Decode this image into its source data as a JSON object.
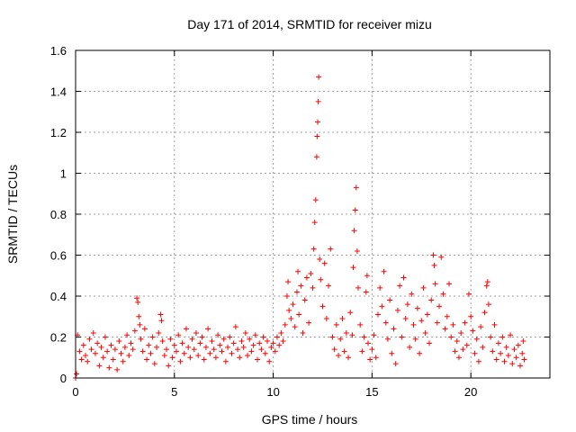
{
  "chart_data": {
    "type": "scatter",
    "title": "Day 171 of 2014, SRMTID for receiver mizu",
    "xlabel": "GPS time / hours",
    "ylabel": "SRMTID / TECUs",
    "xlim": [
      0,
      24
    ],
    "ylim": [
      0,
      1.6
    ],
    "xticks": [
      0,
      5,
      10,
      15,
      20
    ],
    "yticks": [
      0,
      0.2,
      0.4,
      0.6,
      0.8,
      1,
      1.2,
      1.4,
      1.6
    ],
    "xtick_labels": [
      "0",
      "5",
      "10",
      "15",
      "20"
    ],
    "ytick_labels": [
      "0",
      "0.2",
      "0.4",
      "0.6",
      "0.8",
      "1",
      "1.2",
      "1.4",
      "1.6"
    ],
    "grid": true,
    "marker": "+",
    "colors": {
      "points": "#ff0000",
      "grid": "#a0a0a0",
      "axis": "#000000"
    },
    "series": [
      {
        "name": "SRMTID",
        "points": [
          [
            0.0,
            0.0
          ],
          [
            0.05,
            0.02
          ],
          [
            0.1,
            0.21
          ],
          [
            0.2,
            0.13
          ],
          [
            0.3,
            0.09
          ],
          [
            0.4,
            0.16
          ],
          [
            0.5,
            0.11
          ],
          [
            0.6,
            0.08
          ],
          [
            0.7,
            0.19
          ],
          [
            0.8,
            0.14
          ],
          [
            0.9,
            0.22
          ],
          [
            1.0,
            0.12
          ],
          [
            1.1,
            0.17
          ],
          [
            1.2,
            0.06
          ],
          [
            1.3,
            0.15
          ],
          [
            1.4,
            0.1
          ],
          [
            1.5,
            0.2
          ],
          [
            1.6,
            0.13
          ],
          [
            1.7,
            0.05
          ],
          [
            1.8,
            0.16
          ],
          [
            1.9,
            0.09
          ],
          [
            2.0,
            0.14
          ],
          [
            2.1,
            0.04
          ],
          [
            2.2,
            0.18
          ],
          [
            2.3,
            0.12
          ],
          [
            2.4,
            0.08
          ],
          [
            2.5,
            0.15
          ],
          [
            2.6,
            0.21
          ],
          [
            2.7,
            0.11
          ],
          [
            2.8,
            0.17
          ],
          [
            2.9,
            0.14
          ],
          [
            3.0,
            0.23
          ],
          [
            3.1,
            0.39
          ],
          [
            3.15,
            0.37
          ],
          [
            3.2,
            0.3
          ],
          [
            3.25,
            0.26
          ],
          [
            3.3,
            0.19
          ],
          [
            3.4,
            0.13
          ],
          [
            3.5,
            0.24
          ],
          [
            3.6,
            0.09
          ],
          [
            3.7,
            0.16
          ],
          [
            3.8,
            0.12
          ],
          [
            3.9,
            0.2
          ],
          [
            4.0,
            0.07
          ],
          [
            4.1,
            0.15
          ],
          [
            4.2,
            0.22
          ],
          [
            4.3,
            0.31
          ],
          [
            4.35,
            0.28
          ],
          [
            4.4,
            0.18
          ],
          [
            4.5,
            0.11
          ],
          [
            4.6,
            0.14
          ],
          [
            4.7,
            0.06
          ],
          [
            4.8,
            0.19
          ],
          [
            4.9,
            0.1
          ],
          [
            5.0,
            0.16
          ],
          [
            5.1,
            0.13
          ],
          [
            5.2,
            0.21
          ],
          [
            5.3,
            0.08
          ],
          [
            5.4,
            0.17
          ],
          [
            5.5,
            0.12
          ],
          [
            5.6,
            0.24
          ],
          [
            5.7,
            0.15
          ],
          [
            5.8,
            0.1
          ],
          [
            5.9,
            0.19
          ],
          [
            6.0,
            0.14
          ],
          [
            6.1,
            0.22
          ],
          [
            6.2,
            0.11
          ],
          [
            6.3,
            0.17
          ],
          [
            6.4,
            0.2
          ],
          [
            6.5,
            0.09
          ],
          [
            6.6,
            0.15
          ],
          [
            6.7,
            0.24
          ],
          [
            6.8,
            0.12
          ],
          [
            6.9,
            0.18
          ],
          [
            7.0,
            0.14
          ],
          [
            7.1,
            0.1
          ],
          [
            7.2,
            0.21
          ],
          [
            7.3,
            0.16
          ],
          [
            7.4,
            0.13
          ],
          [
            7.5,
            0.19
          ],
          [
            7.6,
            0.08
          ],
          [
            7.7,
            0.15
          ],
          [
            7.8,
            0.2
          ],
          [
            7.9,
            0.12
          ],
          [
            8.0,
            0.17
          ],
          [
            8.1,
            0.25
          ],
          [
            8.2,
            0.14
          ],
          [
            8.3,
            0.1
          ],
          [
            8.4,
            0.18
          ],
          [
            8.5,
            0.15
          ],
          [
            8.6,
            0.22
          ],
          [
            8.7,
            0.11
          ],
          [
            8.8,
            0.19
          ],
          [
            8.9,
            0.13
          ],
          [
            9.0,
            0.16
          ],
          [
            9.1,
            0.21
          ],
          [
            9.2,
            0.09
          ],
          [
            9.3,
            0.17
          ],
          [
            9.4,
            0.14
          ],
          [
            9.5,
            0.2
          ],
          [
            9.6,
            0.12
          ],
          [
            9.7,
            0.18
          ],
          [
            9.8,
            0.08
          ],
          [
            9.9,
            0.15
          ],
          [
            10.0,
            0.17
          ],
          [
            10.1,
            0.13
          ],
          [
            10.2,
            0.2
          ],
          [
            10.3,
            0.16
          ],
          [
            10.4,
            0.22
          ],
          [
            10.5,
            0.18
          ],
          [
            10.6,
            0.26
          ],
          [
            10.7,
            0.4
          ],
          [
            10.75,
            0.47
          ],
          [
            10.8,
            0.33
          ],
          [
            10.9,
            0.29
          ],
          [
            11.0,
            0.36
          ],
          [
            11.1,
            0.25
          ],
          [
            11.2,
            0.42
          ],
          [
            11.25,
            0.52
          ],
          [
            11.3,
            0.31
          ],
          [
            11.4,
            0.45
          ],
          [
            11.5,
            0.22
          ],
          [
            11.6,
            0.38
          ],
          [
            11.7,
            0.49
          ],
          [
            11.8,
            0.27
          ],
          [
            11.9,
            0.51
          ],
          [
            12.0,
            0.44
          ],
          [
            12.05,
            0.63
          ],
          [
            12.1,
            0.76
          ],
          [
            12.15,
            0.87
          ],
          [
            12.2,
            1.08
          ],
          [
            12.22,
            1.18
          ],
          [
            12.25,
            1.25
          ],
          [
            12.28,
            1.35
          ],
          [
            12.3,
            1.47
          ],
          [
            12.35,
            0.58
          ],
          [
            12.4,
            0.48
          ],
          [
            12.5,
            0.35
          ],
          [
            12.6,
            0.56
          ],
          [
            12.7,
            0.29
          ],
          [
            12.8,
            0.45
          ],
          [
            12.9,
            0.63
          ],
          [
            13.0,
            0.2
          ],
          [
            13.1,
            0.14
          ],
          [
            13.2,
            0.26
          ],
          [
            13.3,
            0.11
          ],
          [
            13.4,
            0.19
          ],
          [
            13.5,
            0.29
          ],
          [
            13.6,
            0.13
          ],
          [
            13.7,
            0.22
          ],
          [
            13.8,
            0.1
          ],
          [
            13.9,
            0.32
          ],
          [
            14.0,
            0.21
          ],
          [
            14.05,
            0.54
          ],
          [
            14.1,
            0.72
          ],
          [
            14.15,
            0.82
          ],
          [
            14.2,
            0.93
          ],
          [
            14.25,
            0.62
          ],
          [
            14.3,
            0.44
          ],
          [
            14.4,
            0.26
          ],
          [
            14.5,
            0.13
          ],
          [
            14.6,
            0.2
          ],
          [
            14.7,
            0.42
          ],
          [
            14.75,
            0.5
          ],
          [
            14.8,
            0.17
          ],
          [
            14.9,
            0.09
          ],
          [
            15.0,
            0.14
          ],
          [
            15.1,
            0.21
          ],
          [
            15.2,
            0.1
          ],
          [
            15.3,
            0.31
          ],
          [
            15.4,
            0.44
          ],
          [
            15.5,
            0.35
          ],
          [
            15.6,
            0.52
          ],
          [
            15.7,
            0.27
          ],
          [
            15.8,
            0.19
          ],
          [
            15.9,
            0.38
          ],
          [
            16.0,
            0.12
          ],
          [
            16.1,
            0.24
          ],
          [
            16.2,
            0.07
          ],
          [
            16.3,
            0.33
          ],
          [
            16.4,
            0.45
          ],
          [
            16.5,
            0.2
          ],
          [
            16.6,
            0.49
          ],
          [
            16.7,
            0.29
          ],
          [
            16.8,
            0.36
          ],
          [
            16.9,
            0.15
          ],
          [
            17.0,
            0.41
          ],
          [
            17.1,
            0.26
          ],
          [
            17.2,
            0.19
          ],
          [
            17.3,
            0.34
          ],
          [
            17.4,
            0.12
          ],
          [
            17.5,
            0.28
          ],
          [
            17.6,
            0.44
          ],
          [
            17.7,
            0.22
          ],
          [
            17.8,
            0.31
          ],
          [
            17.9,
            0.17
          ],
          [
            18.0,
            0.38
          ],
          [
            18.1,
            0.6
          ],
          [
            18.15,
            0.55
          ],
          [
            18.2,
            0.46
          ],
          [
            18.3,
            0.27
          ],
          [
            18.4,
            0.35
          ],
          [
            18.5,
            0.59
          ],
          [
            18.6,
            0.41
          ],
          [
            18.7,
            0.24
          ],
          [
            18.8,
            0.3
          ],
          [
            18.9,
            0.46
          ],
          [
            19.0,
            0.2
          ],
          [
            19.1,
            0.26
          ],
          [
            19.2,
            0.13
          ],
          [
            19.3,
            0.18
          ],
          [
            19.4,
            0.1
          ],
          [
            19.5,
            0.22
          ],
          [
            19.6,
            0.14
          ],
          [
            19.7,
            0.27
          ],
          [
            19.8,
            0.16
          ],
          [
            19.9,
            0.41
          ],
          [
            20.0,
            0.3
          ],
          [
            20.1,
            0.23
          ],
          [
            20.2,
            0.12
          ],
          [
            20.3,
            0.19
          ],
          [
            20.4,
            0.08
          ],
          [
            20.5,
            0.25
          ],
          [
            20.6,
            0.15
          ],
          [
            20.7,
            0.32
          ],
          [
            20.8,
            0.45
          ],
          [
            20.85,
            0.47
          ],
          [
            20.9,
            0.36
          ],
          [
            21.0,
            0.2
          ],
          [
            21.1,
            0.13
          ],
          [
            21.2,
            0.26
          ],
          [
            21.3,
            0.09
          ],
          [
            21.4,
            0.17
          ],
          [
            21.5,
            0.12
          ],
          [
            21.6,
            0.2
          ],
          [
            21.7,
            0.08
          ],
          [
            21.8,
            0.15
          ],
          [
            21.9,
            0.11
          ],
          [
            22.0,
            0.21
          ],
          [
            22.1,
            0.07
          ],
          [
            22.2,
            0.14
          ],
          [
            22.3,
            0.1
          ],
          [
            22.4,
            0.16
          ],
          [
            22.5,
            0.06
          ],
          [
            22.6,
            0.12
          ],
          [
            22.65,
            0.18
          ],
          [
            22.7,
            0.09
          ]
        ]
      }
    ]
  }
}
